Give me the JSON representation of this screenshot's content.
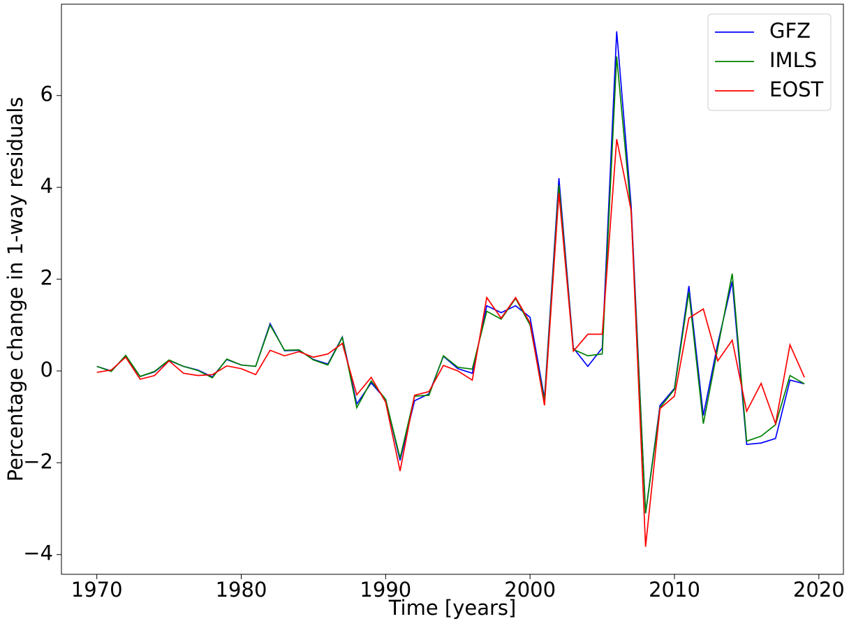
{
  "chart_data": {
    "type": "line",
    "xlabel": "Time [years]",
    "ylabel": "Percentage change in 1-way residuals",
    "x": [
      1970,
      1971,
      1972,
      1973,
      1974,
      1975,
      1976,
      1977,
      1978,
      1979,
      1980,
      1981,
      1982,
      1983,
      1984,
      1985,
      1986,
      1987,
      1988,
      1989,
      1990,
      1991,
      1992,
      1993,
      1994,
      1995,
      1996,
      1997,
      1998,
      1999,
      2000,
      2001,
      2002,
      2003,
      2004,
      2005,
      2006,
      2007,
      2008,
      2009,
      2010,
      2011,
      2012,
      2013,
      2014,
      2015,
      2016,
      2017,
      2018,
      2019
    ],
    "series": [
      {
        "name": "GFZ",
        "color": "#0000ff",
        "values": [
          0.1,
          0.0,
          0.32,
          -0.12,
          -0.02,
          0.23,
          0.1,
          0.02,
          -0.13,
          0.25,
          0.13,
          0.1,
          1.03,
          0.44,
          0.45,
          0.25,
          0.15,
          0.74,
          -0.72,
          -0.26,
          -0.62,
          -1.95,
          -0.65,
          -0.5,
          0.32,
          0.05,
          -0.05,
          1.42,
          1.27,
          1.42,
          1.17,
          -0.6,
          4.2,
          0.5,
          0.1,
          0.5,
          7.4,
          3.6,
          -3.1,
          -0.75,
          -0.38,
          1.85,
          -0.97,
          0.6,
          1.95,
          -1.6,
          -1.57,
          -1.47,
          -0.2,
          -0.28
        ]
      },
      {
        "name": "IMLS",
        "color": "#008000",
        "values": [
          0.1,
          -0.01,
          0.34,
          -0.12,
          -0.01,
          0.24,
          0.1,
          0.01,
          -0.15,
          0.26,
          0.13,
          0.1,
          1.0,
          0.45,
          0.46,
          0.24,
          0.13,
          0.73,
          -0.8,
          -0.22,
          -0.62,
          -1.9,
          -0.55,
          -0.53,
          0.33,
          0.08,
          0.04,
          1.3,
          1.13,
          1.58,
          1.0,
          -0.65,
          4.05,
          0.47,
          0.33,
          0.37,
          6.85,
          3.45,
          -3.1,
          -0.8,
          -0.4,
          1.72,
          -1.15,
          0.5,
          2.12,
          -1.53,
          -1.42,
          -1.17,
          -0.1,
          -0.28
        ]
      },
      {
        "name": "EOST",
        "color": "#ff0000",
        "values": [
          -0.03,
          0.02,
          0.3,
          -0.18,
          -0.1,
          0.22,
          -0.05,
          -0.1,
          -0.08,
          0.11,
          0.05,
          -0.08,
          0.45,
          0.33,
          0.42,
          0.3,
          0.37,
          0.6,
          -0.52,
          -0.14,
          -0.68,
          -2.18,
          -0.53,
          -0.45,
          0.12,
          0.0,
          -0.2,
          1.6,
          1.15,
          1.6,
          1.05,
          -0.75,
          3.88,
          0.43,
          0.8,
          0.8,
          5.05,
          3.5,
          -3.83,
          -0.82,
          -0.55,
          1.15,
          1.35,
          0.22,
          0.67,
          -0.88,
          -0.27,
          -1.15,
          0.57,
          -0.14
        ]
      }
    ],
    "xlim": [
      1967.55,
      2021.7
    ],
    "xticks": [
      1970,
      1980,
      1990,
      2000,
      2010,
      2020
    ],
    "ylim": [
      -4.43,
      7.99
    ],
    "yticks": [
      {
        "value": -4,
        "label": "−4"
      },
      {
        "value": -2,
        "label": "−2"
      },
      0,
      2,
      4,
      6
    ],
    "legend": "upper right",
    "grid": false
  }
}
